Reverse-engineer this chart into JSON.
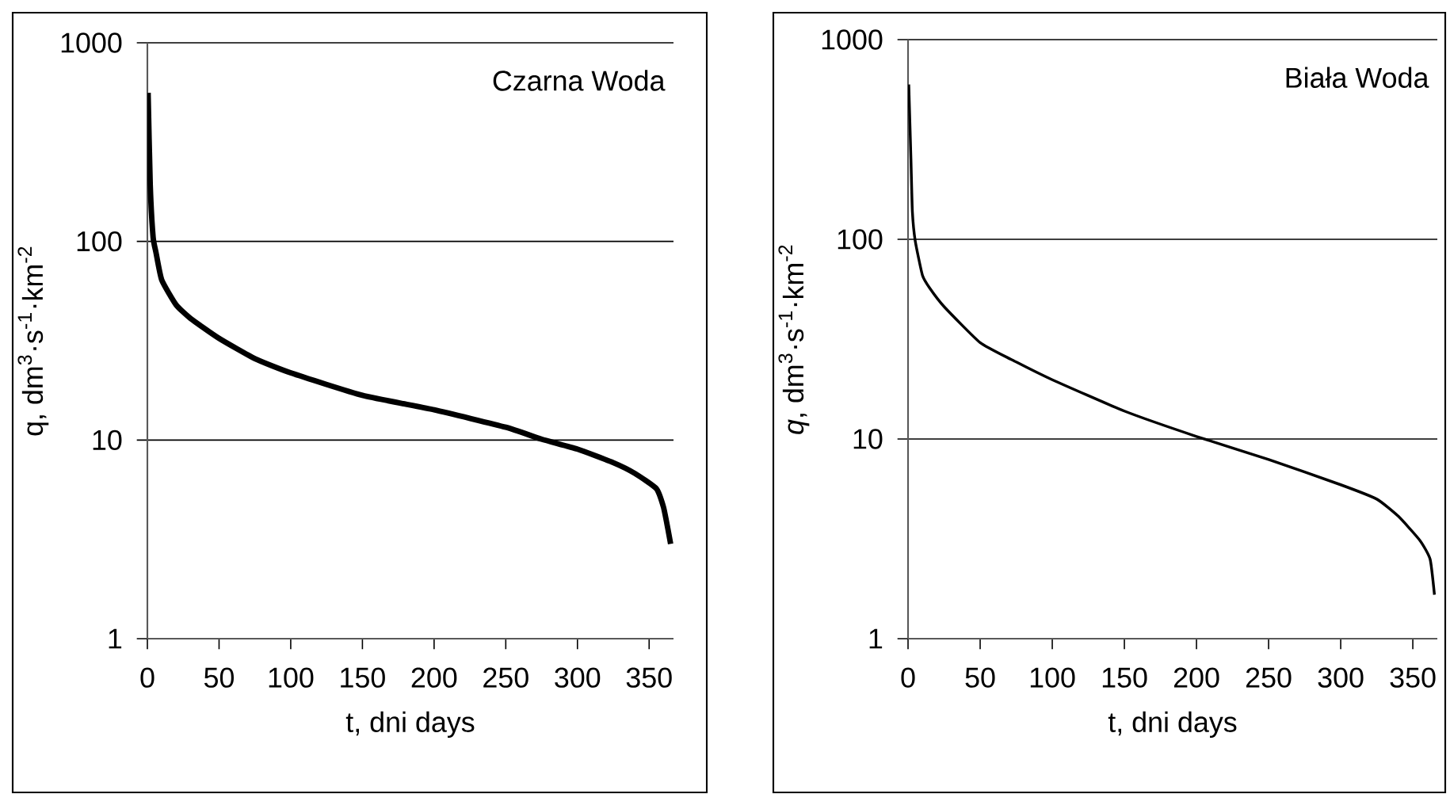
{
  "chart_data": [
    {
      "type": "line",
      "xlabel": "t,  dni  days",
      "ylabel": "q,  dm$^{3}$·s$^{-1}$·km$^{-2}$",
      "annotations": [
        "Czarna Woda"
      ],
      "log": "y",
      "grid": "y",
      "xlim": [
        0,
        367
      ],
      "ylim": [
        1,
        1000
      ],
      "xticks": [
        0,
        50,
        100,
        150,
        200,
        250,
        300,
        350
      ],
      "yticks": [
        1,
        10,
        100,
        1000
      ],
      "series": [
        {
          "color": "#000000",
          "x": [
            0.5,
            2,
            4,
            6,
            10,
            20,
            30,
            50,
            75,
            100,
            150,
            200,
            250,
            275,
            300,
            325,
            340,
            355,
            360,
            363,
            365
          ],
          "values": [
            560,
            192,
            105,
            88,
            64,
            48,
            41,
            32.5,
            25.7,
            21.8,
            16.8,
            14.2,
            11.6,
            10.1,
            9.0,
            7.7,
            6.8,
            5.7,
            4.6,
            3.6,
            3.0
          ]
        }
      ]
    },
    {
      "type": "line",
      "xlabel": "t,  dni   days",
      "ylabel": "*q*,  dm$^{3}$·s$^{-1}$·km$^{-2}$",
      "annotations": [
        "Biała Woda"
      ],
      "log": "y",
      "grid": "y",
      "xlim": [
        0,
        367
      ],
      "ylim": [
        1,
        1000
      ],
      "xticks": [
        0,
        50,
        100,
        150,
        200,
        250,
        300,
        350
      ],
      "yticks": [
        1,
        10,
        100,
        1000
      ],
      "series": [
        {
          "color": "#000000",
          "x": [
            0.5,
            2,
            3,
            5,
            10,
            15,
            25,
            50,
            75,
            100,
            150,
            200,
            250,
            300,
            325,
            340,
            355,
            362,
            365
          ],
          "values": [
            596,
            253,
            138,
            98,
            66,
            57,
            46,
            30.4,
            24.3,
            19.8,
            13.8,
            10.3,
            7.9,
            5.9,
            5.0,
            4.1,
            3.1,
            2.5,
            1.66
          ]
        }
      ]
    }
  ]
}
